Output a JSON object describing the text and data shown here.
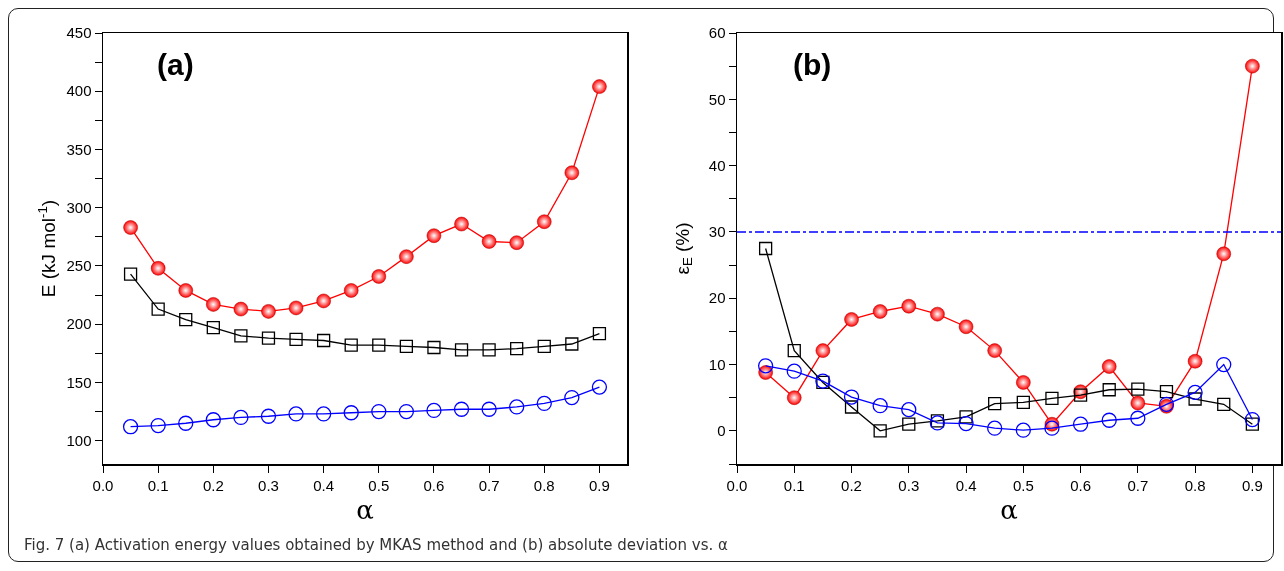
{
  "chart_data": [
    {
      "type": "line",
      "title": "(a)",
      "xlabel": "α",
      "ylabel": "E (kJ mol$^{-1}$)",
      "x": [
        0.05,
        0.1,
        0.15,
        0.2,
        0.25,
        0.3,
        0.35,
        0.4,
        0.45,
        0.5,
        0.55,
        0.6,
        0.65,
        0.7,
        0.75,
        0.8,
        0.85,
        0.9
      ],
      "series": [
        {
          "color": "#ff0000",
          "marker": "circle",
          "values": [
            283,
            248,
            229,
            217,
            213,
            211,
            214,
            220,
            229,
            241,
            258,
            276,
            286,
            271,
            270,
            288,
            330,
            404
          ]
        },
        {
          "color": "#000000",
          "marker": "square",
          "values": [
            243,
            213,
            204,
            197,
            190,
            188,
            187,
            186,
            182,
            182,
            181,
            180,
            178,
            178,
            179,
            181,
            183,
            192
          ]
        },
        {
          "color": "#0000ff",
          "marker": "circle",
          "values": [
            112,
            113,
            115,
            118,
            120,
            121,
            123,
            123,
            124,
            125,
            125,
            126,
            127,
            127,
            129,
            132,
            137,
            146
          ]
        }
      ],
      "xlim": [
        0,
        0.95
      ],
      "xticks": [
        {
          "value": 0,
          "label": "0.0"
        },
        0.1,
        0.2,
        0.3,
        0.4,
        0.5,
        0.6,
        0.7,
        0.8,
        0.9
      ],
      "ylim": [
        80,
        450
      ],
      "yticks": [
        100,
        {
          "value": 125,
          "label": null
        },
        150,
        {
          "value": 175,
          "label": null
        },
        200,
        {
          "value": 225,
          "label": null
        },
        250,
        {
          "value": 275,
          "label": null
        },
        300,
        {
          "value": 325,
          "label": null
        },
        350,
        {
          "value": 375,
          "label": null
        },
        400,
        {
          "value": 425,
          "label": null
        },
        450
      ],
      "grid": false,
      "line_style": "solid",
      "annotations": [
        "Fig. 7 (a) Activation energy values obtained by MKAS method and (b) absolute deviation vs. α"
      ]
    },
    {
      "type": "line",
      "title": "(b)",
      "xlabel": "α",
      "ylabel": "ε$_{E}$ (%)",
      "x": [
        0.05,
        0.1,
        0.15,
        0.2,
        0.25,
        0.3,
        0.35,
        0.4,
        0.45,
        0.5,
        0.55,
        0.6,
        0.65,
        0.7,
        0.75,
        0.8,
        0.85,
        0.9
      ],
      "series": [
        {
          "color": "#ff0000",
          "marker": "circle",
          "values": [
            8.8,
            5,
            12.1,
            16.8,
            18,
            18.8,
            17.6,
            15.7,
            12.1,
            7.3,
            1,
            5.9,
            9.7,
            4.2,
            3.7,
            10.5,
            26.7,
            55
          ]
        },
        {
          "color": "#000000",
          "marker": "square",
          "values": [
            27.5,
            12.1,
            7.3,
            3.6,
            0,
            1,
            1.5,
            2.1,
            4.1,
            4.3,
            4.9,
            5.4,
            6.2,
            6.3,
            5.9,
            4.8,
            4,
            1
          ]
        },
        {
          "color": "#0000ff",
          "marker": "circle",
          "values": [
            9.8,
            9,
            7.5,
            5.1,
            3.8,
            3.2,
            1.2,
            1.1,
            0.4,
            0.1,
            0.4,
            1,
            1.6,
            1.9,
            4,
            5.8,
            10,
            1.7
          ]
        }
      ],
      "xlim": [
        0,
        0.95
      ],
      "xticks": [
        {
          "value": 0,
          "label": "0.0"
        },
        0.1,
        0.2,
        0.3,
        0.4,
        0.5,
        0.6,
        0.7,
        0.8,
        0.9
      ],
      "ylim": [
        -5,
        60
      ],
      "yticks": [
        {
          "value": -5,
          "label": null
        },
        0,
        {
          "value": 5,
          "label": null
        },
        10,
        {
          "value": 15,
          "label": null
        },
        20,
        {
          "value": 25,
          "label": null
        },
        30,
        {
          "value": 35,
          "label": null
        },
        40,
        {
          "value": 45,
          "label": null
        },
        50,
        {
          "value": 55,
          "label": null
        },
        60
      ],
      "ref_lines": [
        {
          "axis": "y",
          "value": 30,
          "color": "#0000ff",
          "line_style": "dashdot"
        }
      ],
      "grid": false,
      "line_style": "solid"
    }
  ]
}
